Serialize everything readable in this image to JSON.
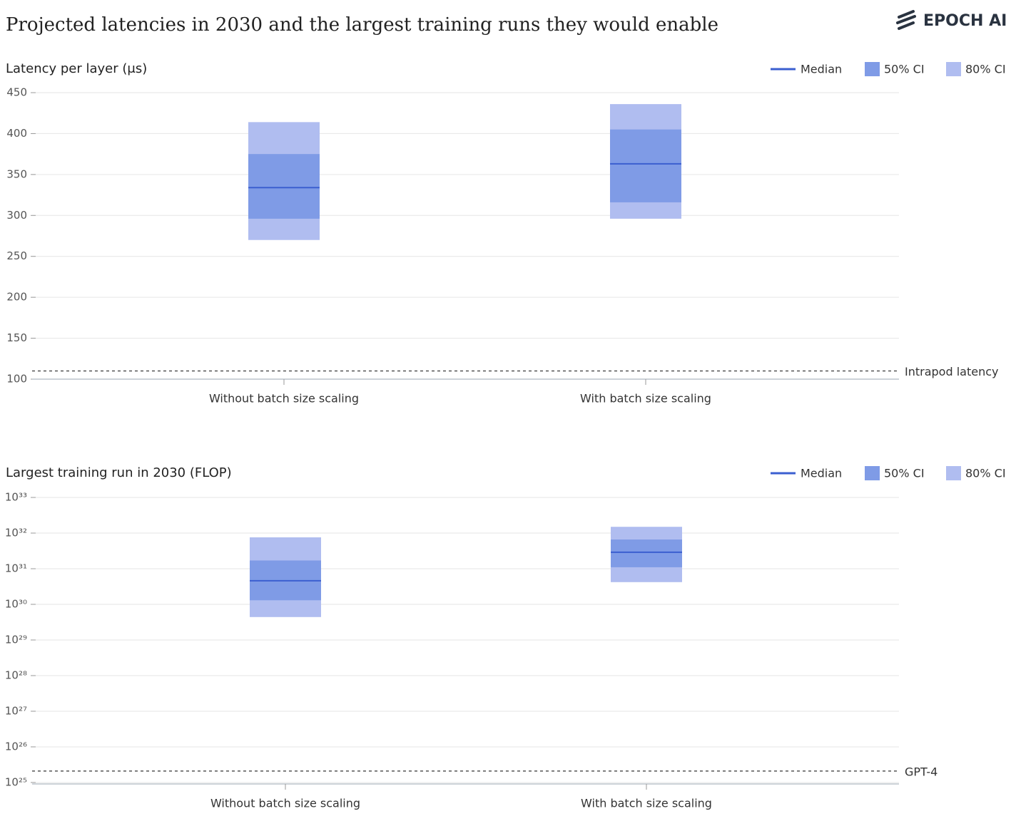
{
  "header": {
    "title": "Projected latencies in 2030 and the largest training runs they would enable",
    "logo": "EPOCH AI"
  },
  "chart_data": [
    {
      "type": "interval",
      "title": "Latency per layer (μs)",
      "log_scale": false,
      "grid": true,
      "categories": [
        "Without batch size scaling",
        "With batch size scaling"
      ],
      "series": [
        {
          "name": "Median",
          "color": "#3b5fd0",
          "values": [
            334,
            363
          ]
        },
        {
          "name": "50% CI",
          "color": "#7f9be6",
          "low": [
            296,
            316
          ],
          "high": [
            375,
            405
          ]
        },
        {
          "name": "80% CI",
          "color": "#b0bdf0",
          "low": [
            270,
            296
          ],
          "high": [
            414,
            436
          ]
        }
      ],
      "reference": {
        "label": "Intrapod latency",
        "value": 110
      },
      "ylim": [
        100,
        450
      ],
      "yticks": [
        100,
        150,
        200,
        250,
        300,
        350,
        400,
        450
      ]
    },
    {
      "type": "interval",
      "title": "Largest training run in 2030 (FLOP)",
      "log_scale": true,
      "grid": true,
      "categories": [
        "Without batch size scaling",
        "With batch size scaling"
      ],
      "series": [
        {
          "name": "Median",
          "color": "#3b5fd0",
          "values": [
            4.6e+30,
            2.9e+31
          ]
        },
        {
          "name": "50% CI",
          "color": "#7f9be6",
          "low": [
            1.3e+30,
            1.1e+31
          ],
          "high": [
            1.7e+31,
            6.6e+31
          ]
        },
        {
          "name": "80% CI",
          "color": "#b0bdf0",
          "low": [
            4.4e+29,
            4.2e+30
          ],
          "high": [
            7.6e+31,
            1.5e+32
          ]
        }
      ],
      "reference": {
        "label": "GPT-4",
        "value": 2.1e+25
      },
      "ylim": [
        9.1e+24,
        1e+33
      ],
      "yticks": [
        {
          "value": 1e+25,
          "label": "10²⁵"
        },
        {
          "value": 1e+26,
          "label": "10²⁶"
        },
        {
          "value": 1e+27,
          "label": "10²⁷"
        },
        {
          "value": 1e+28,
          "label": "10²⁸"
        },
        {
          "value": 1e+29,
          "label": "10²⁹"
        },
        {
          "value": 1e+30,
          "label": "10³⁰"
        },
        {
          "value": 1e+31,
          "label": "10³¹"
        },
        {
          "value": 1e+32,
          "label": "10³²"
        },
        {
          "value": 1e+33,
          "label": "10³³"
        }
      ]
    }
  ]
}
